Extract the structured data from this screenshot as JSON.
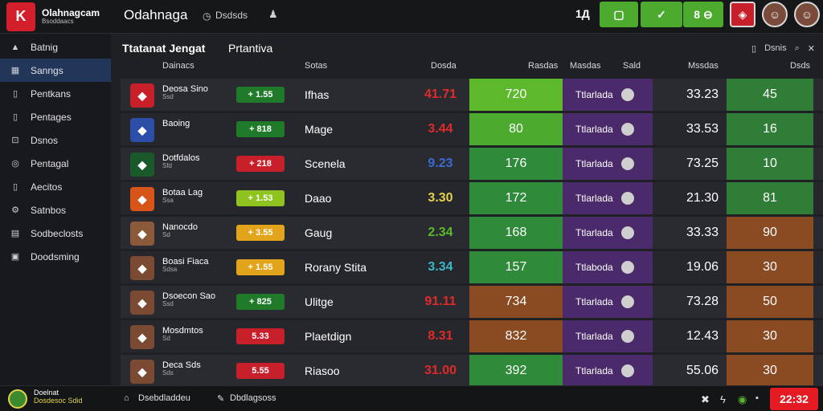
{
  "header": {
    "brand_line1": "Olahnagcam",
    "brand_line2": "Bsoddaacs",
    "app_title": "Odahnaga",
    "search_label": "Dsdsds",
    "counter": "1Д",
    "btn_score": "8 ⊖"
  },
  "sidebar": {
    "items": [
      {
        "label": "Batnig",
        "icon": "user-icon"
      },
      {
        "label": "Sanngs",
        "icon": "chart-icon"
      },
      {
        "label": "Pentkans",
        "icon": "doc-icon"
      },
      {
        "label": "Pentages",
        "icon": "doc-icon"
      },
      {
        "label": "Dsnos",
        "icon": "car-icon"
      },
      {
        "label": "Pentagal",
        "icon": "globe-icon"
      },
      {
        "label": "Aecitos",
        "icon": "doc-icon"
      },
      {
        "label": "Satnbos",
        "icon": "gear-icon"
      },
      {
        "label": "Sodbeclosts",
        "icon": "box-icon"
      },
      {
        "label": "Doodsming",
        "icon": "lock-icon"
      }
    ]
  },
  "main": {
    "title": "Ttatanat Jengat",
    "subtitle": "Prtantiva",
    "toolbar_label": "Dsnis",
    "col_headers": [
      "Dainacs",
      "Sotas",
      "Dosda",
      "Rasdas",
      "Masdas",
      "Sald",
      "Mssdas",
      "Dsds"
    ]
  },
  "rows": [
    {
      "name": "Deosa Sino",
      "sub": "Ssd",
      "pill": "+ 1.55",
      "pill_color": "#1f7a2a",
      "city": "Ifhas",
      "a": "41.71",
      "a_color": "#e02a2a",
      "b": "720",
      "b_color": "#5db82c",
      "team2": "Ttlarlada",
      "c": "33.23",
      "d": "45",
      "d_color": "#2f7d36",
      "crest": "#c8202a"
    },
    {
      "name": "Baoing",
      "sub": "",
      "pill": "+ 818",
      "pill_color": "#1f7a2a",
      "city": "Mage",
      "a": "3.44",
      "a_color": "#e02a2a",
      "b": "80",
      "b_color": "#4caa2e",
      "team2": "Ttlarlada",
      "c": "33.53",
      "d": "16",
      "d_color": "#2f7d36",
      "crest": "#2c4ea8"
    },
    {
      "name": "Dotfdalos",
      "sub": "Sfd",
      "pill": "+ 218",
      "pill_color": "#c8202a",
      "city": "Scenela",
      "a": "9.23",
      "a_color": "#3a6ad0",
      "b": "176",
      "b_color": "#2f8a3a",
      "team2": "Ttlarlada",
      "c": "73.25",
      "d": "10",
      "d_color": "#2f7d36",
      "crest": "#1a5a2a"
    },
    {
      "name": "Botaa Lag",
      "sub": "Ssa",
      "pill": "+ 1.53",
      "pill_color": "#8fc420",
      "city": "Daao",
      "a": "3.30",
      "a_color": "#e2d24a",
      "b": "172",
      "b_color": "#2f8a3a",
      "team2": "Ttlarlada",
      "c": "21.30",
      "d": "81",
      "d_color": "#2f7d36",
      "crest": "#d8551a"
    },
    {
      "name": "Nanocdo",
      "sub": "Sd",
      "pill": "+ 3.55",
      "pill_color": "#e2a41a",
      "city": "Gaug",
      "a": "2.34",
      "a_color": "#5db82c",
      "b": "168",
      "b_color": "#2f8a3a",
      "team2": "Ttlarlada",
      "c": "33.33",
      "d": "90",
      "d_color": "#8a4a22",
      "crest": "#8a5a3a"
    },
    {
      "name": "Boasi Fiaca",
      "sub": "Sdsa",
      "pill": "+ 1.55",
      "pill_color": "#e2a41a",
      "city": "Rorany Stita",
      "a": "3.34",
      "a_color": "#3ab8c8",
      "b": "157",
      "b_color": "#2f8a3a",
      "team2": "Ttlaboda",
      "c": "19.06",
      "d": "30",
      "d_color": "#8a4a22",
      "crest": "#7a4a32"
    },
    {
      "name": "Dsoecon Sao",
      "sub": "Ssd",
      "pill": "+ 825",
      "pill_color": "#1f7a2a",
      "city": "Ulitge",
      "a": "91.11",
      "a_color": "#e02a2a",
      "b": "734",
      "b_color": "#8a4a22",
      "team2": "Ttlarlada",
      "c": "73.28",
      "d": "50",
      "d_color": "#8a4a22",
      "crest": "#7a4a32"
    },
    {
      "name": "Mosdmtos",
      "sub": "Sd",
      "pill": "5.33",
      "pill_color": "#c8202a",
      "city": "Plaetdign",
      "a": "8.31",
      "a_color": "#e02a2a",
      "b": "832",
      "b_color": "#8a4a22",
      "team2": "Ttlarlada",
      "c": "12.43",
      "d": "30",
      "d_color": "#8a4a22",
      "crest": "#7a4a32"
    },
    {
      "name": "Deca Sds",
      "sub": "Sds",
      "pill": "5.55",
      "pill_color": "#c8202a",
      "city": "Riasoo",
      "a": "31.00",
      "a_color": "#e02a2a",
      "b": "392",
      "b_color": "#2f8a3a",
      "team2": "Ttlarlada",
      "c": "55.06",
      "d": "30",
      "d_color": "#8a4a22",
      "crest": "#7a4a32"
    }
  ],
  "footer": {
    "user_line1": "Doelnat",
    "user_line2": "Dosdesoc Sdid",
    "link1": "Dsebdladdeu",
    "link2": "Dbdlagsoss",
    "score": "22:32"
  }
}
